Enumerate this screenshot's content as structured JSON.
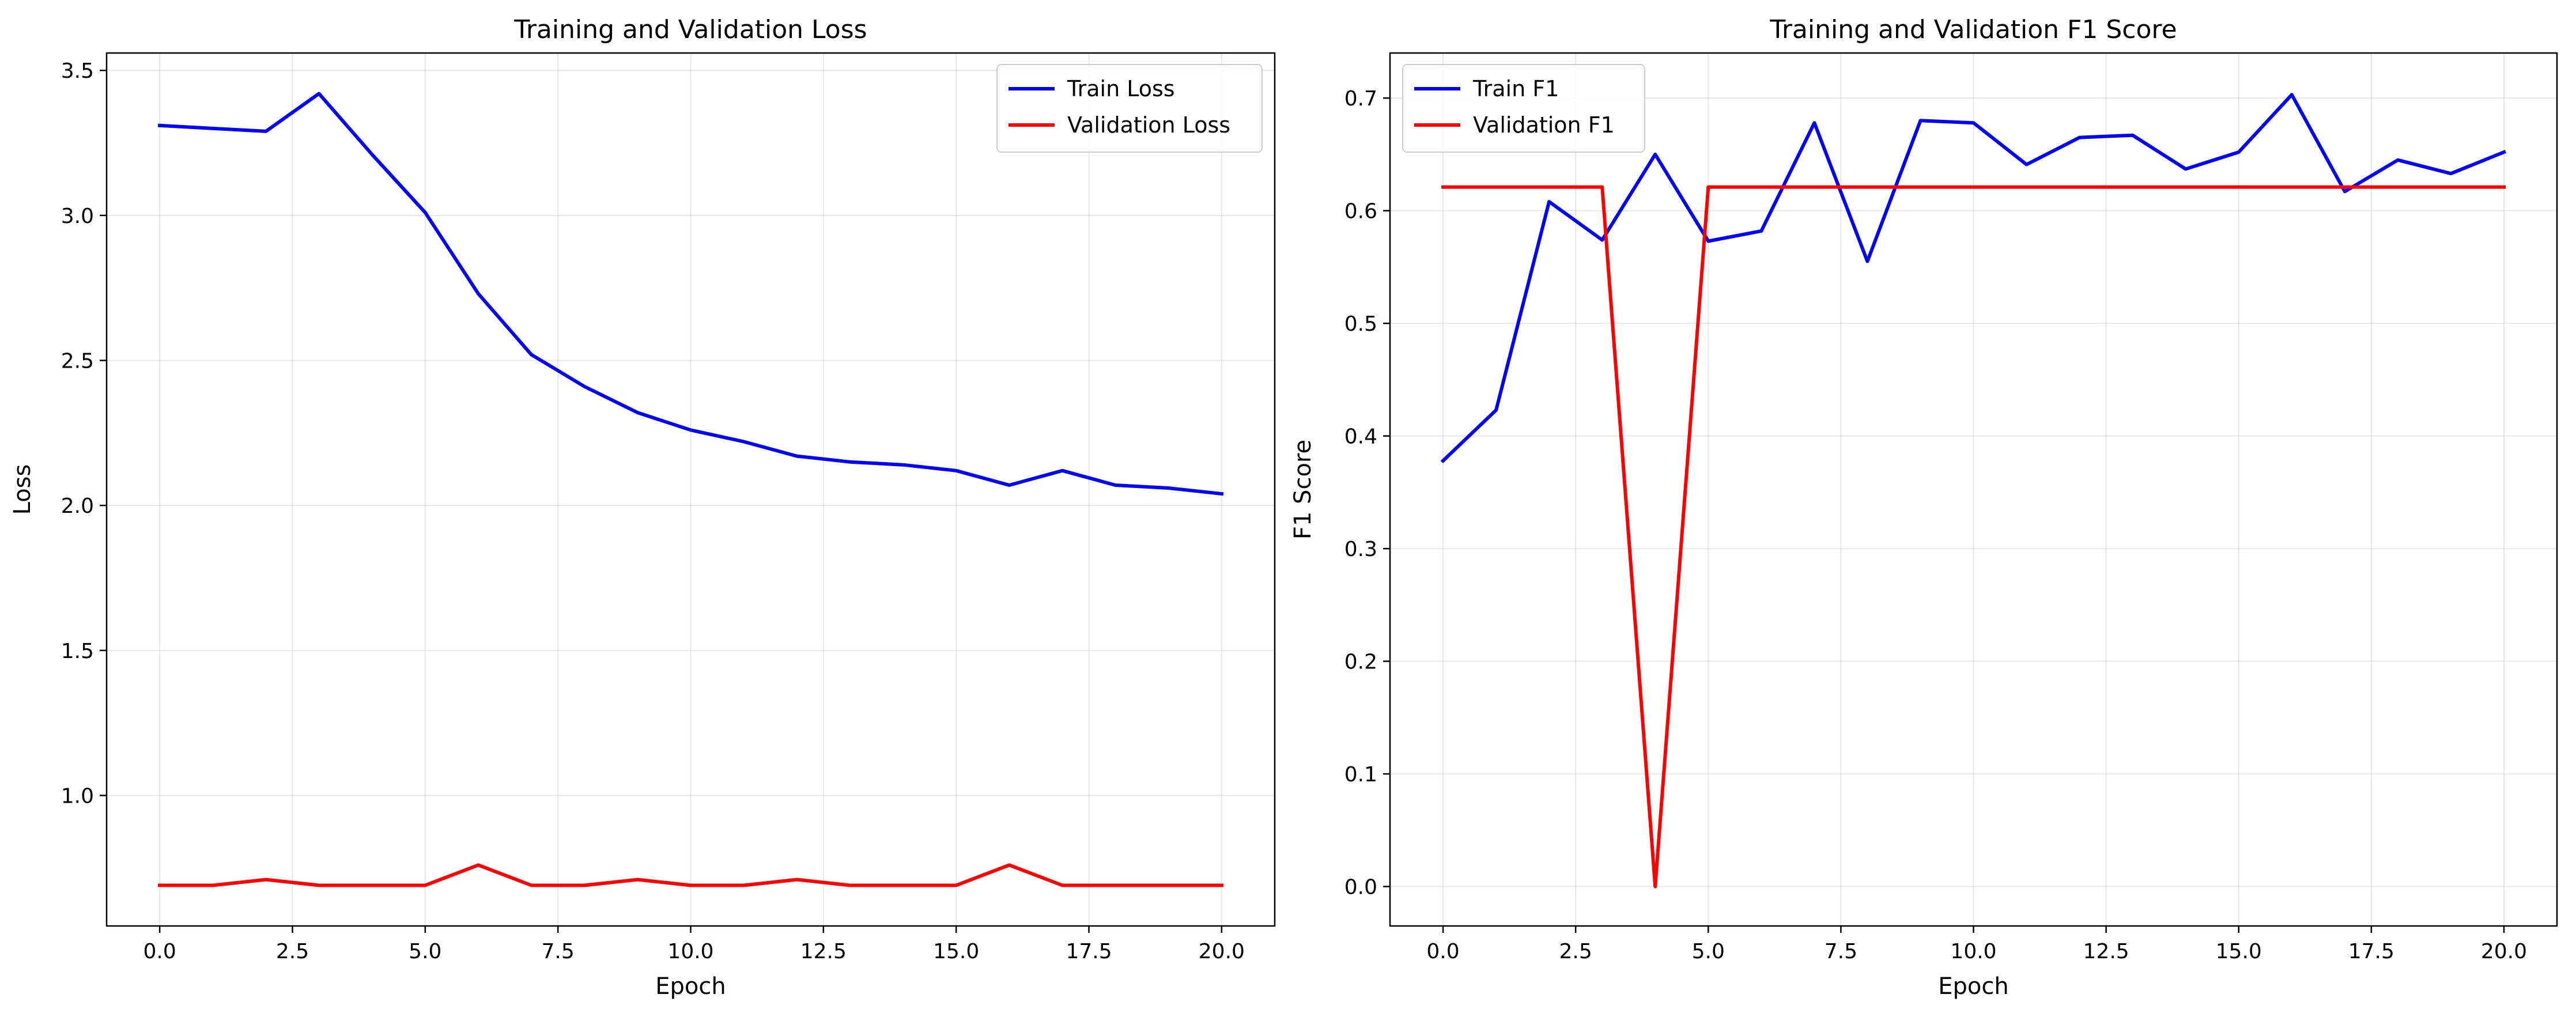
{
  "chart_data": [
    {
      "type": "line",
      "title": "Training and Validation Loss",
      "xlabel": "Epoch",
      "ylabel": "Loss",
      "xlim": [
        -1,
        21
      ],
      "ylim": [
        0.55,
        3.56
      ],
      "xticks": [
        0,
        2.5,
        5,
        7.5,
        10,
        12.5,
        15,
        17.5,
        20
      ],
      "xtick_labels": [
        "0.0",
        "2.5",
        "5.0",
        "7.5",
        "10.0",
        "12.5",
        "15.0",
        "17.5",
        "20.0"
      ],
      "yticks": [
        1.0,
        1.5,
        2.0,
        2.5,
        3.0,
        3.5
      ],
      "ytick_labels": [
        "1.0",
        "1.5",
        "2.0",
        "2.5",
        "3.0",
        "3.5"
      ],
      "grid": true,
      "legend_position": "top-right",
      "x": [
        0,
        1,
        2,
        3,
        4,
        5,
        6,
        7,
        8,
        9,
        10,
        11,
        12,
        13,
        14,
        15,
        16,
        17,
        18,
        19,
        20
      ],
      "series": [
        {
          "name": "Train Loss",
          "color": "#0000ff",
          "values": [
            3.31,
            3.3,
            3.29,
            3.42,
            3.21,
            3.01,
            2.73,
            2.52,
            2.41,
            2.32,
            2.26,
            2.22,
            2.17,
            2.15,
            2.14,
            2.12,
            2.07,
            2.12,
            2.07,
            2.06,
            2.04
          ]
        },
        {
          "name": "Validation Loss",
          "color": "#ff0000",
          "values": [
            0.69,
            0.69,
            0.71,
            0.69,
            0.69,
            0.69,
            0.76,
            0.69,
            0.69,
            0.71,
            0.69,
            0.69,
            0.71,
            0.69,
            0.69,
            0.69,
            0.76,
            0.69,
            0.69,
            0.69,
            0.69
          ]
        }
      ]
    },
    {
      "type": "line",
      "title": "Training and Validation F1 Score",
      "xlabel": "Epoch",
      "ylabel": "F1 Score",
      "xlim": [
        -1,
        21
      ],
      "ylim": [
        -0.035,
        0.74
      ],
      "xticks": [
        0,
        2.5,
        5,
        7.5,
        10,
        12.5,
        15,
        17.5,
        20
      ],
      "xtick_labels": [
        "0.0",
        "2.5",
        "5.0",
        "7.5",
        "10.0",
        "12.5",
        "15.0",
        "17.5",
        "20.0"
      ],
      "yticks": [
        0.0,
        0.1,
        0.2,
        0.3,
        0.4,
        0.5,
        0.6,
        0.7
      ],
      "ytick_labels": [
        "0.0",
        "0.1",
        "0.2",
        "0.3",
        "0.4",
        "0.5",
        "0.6",
        "0.7"
      ],
      "grid": true,
      "legend_position": "top-left",
      "x": [
        0,
        1,
        2,
        3,
        4,
        5,
        6,
        7,
        8,
        9,
        10,
        11,
        12,
        13,
        14,
        15,
        16,
        17,
        18,
        19,
        20
      ],
      "series": [
        {
          "name": "Train F1",
          "color": "#0000ff",
          "values": [
            0.378,
            0.423,
            0.608,
            0.574,
            0.65,
            0.573,
            0.582,
            0.678,
            0.555,
            0.68,
            0.678,
            0.641,
            0.665,
            0.667,
            0.637,
            0.652,
            0.703,
            0.617,
            0.645,
            0.633,
            0.652
          ]
        },
        {
          "name": "Validation F1",
          "color": "#ff0000",
          "values": [
            0.621,
            0.621,
            0.621,
            0.621,
            0.0,
            0.621,
            0.621,
            0.621,
            0.621,
            0.621,
            0.621,
            0.621,
            0.621,
            0.621,
            0.621,
            0.621,
            0.621,
            0.621,
            0.621,
            0.621,
            0.621
          ]
        }
      ]
    }
  ]
}
